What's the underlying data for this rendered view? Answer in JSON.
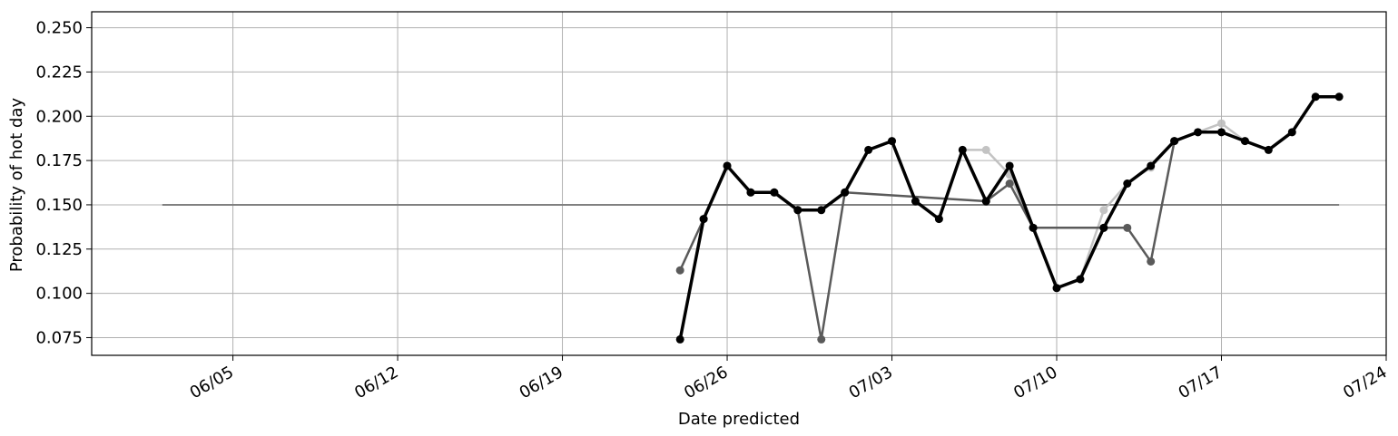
{
  "chart_data": {
    "type": "line",
    "xlabel": "Date predicted",
    "ylabel": "Probability of hot day",
    "x_tick_labels": [
      "06/05",
      "06/12",
      "06/19",
      "06/26",
      "07/03",
      "07/10",
      "07/17",
      "07/24"
    ],
    "y_tick_labels": [
      "0.075",
      "0.100",
      "0.125",
      "0.150",
      "0.175",
      "0.200",
      "0.225",
      "0.250"
    ],
    "y_ticks": [
      0.075,
      0.1,
      0.125,
      0.15,
      0.175,
      0.2,
      0.225,
      0.25
    ],
    "ylim": [
      0.065,
      0.259
    ],
    "xlim": [
      "2019-05-30",
      "2019-07-24"
    ],
    "grid": true,
    "legend": "none",
    "reference_line": {
      "x": [
        "2019-06-02",
        "2019-07-22"
      ],
      "value": 0.15,
      "color": "#808080"
    },
    "series": [
      {
        "color": "#bdbdbd",
        "opacity": 0.9,
        "width": 2.5,
        "points": [
          [
            "2019-07-06",
            0.181
          ],
          [
            "2019-07-07",
            0.181
          ],
          [
            "2019-07-08",
            0.167
          ],
          [
            "2019-07-09",
            0.137
          ],
          [
            "2019-07-10",
            0.103
          ],
          [
            "2019-07-11",
            0.108
          ],
          [
            "2019-07-12",
            0.147
          ],
          [
            "2019-07-13",
            0.162
          ],
          [
            "2019-07-14",
            0.171
          ],
          [
            "2019-07-15",
            0.186
          ],
          [
            "2019-07-16",
            0.191
          ],
          [
            "2019-07-17",
            0.196
          ],
          [
            "2019-07-18",
            0.186
          ]
        ]
      },
      {
        "color": "#5a5a5a",
        "opacity": 1,
        "width": 2.5,
        "points": [
          [
            "2019-06-24",
            0.113
          ],
          [
            "2019-06-25",
            0.142
          ],
          [
            "2019-06-26",
            0.172
          ],
          [
            "2019-06-27",
            0.157
          ],
          [
            "2019-06-28",
            0.157
          ],
          [
            "2019-06-29",
            0.147
          ],
          [
            "2019-06-30",
            0.074
          ],
          [
            "2019-07-01",
            0.157
          ],
          [
            "2019-07-07",
            0.152
          ],
          [
            "2019-07-08",
            0.162
          ],
          [
            "2019-07-09",
            0.137
          ],
          [
            "2019-07-12",
            0.137
          ],
          [
            "2019-07-13",
            0.137
          ],
          [
            "2019-07-14",
            0.118
          ],
          [
            "2019-07-15",
            0.186
          ]
        ]
      },
      {
        "color": "#000000",
        "opacity": 1,
        "width": 3.5,
        "points": [
          [
            "2019-06-24",
            0.074
          ],
          [
            "2019-06-25",
            0.142
          ],
          [
            "2019-06-26",
            0.172
          ],
          [
            "2019-06-27",
            0.157
          ],
          [
            "2019-06-28",
            0.157
          ],
          [
            "2019-06-29",
            0.147
          ],
          [
            "2019-06-30",
            0.147
          ],
          [
            "2019-07-01",
            0.157
          ],
          [
            "2019-07-02",
            0.181
          ],
          [
            "2019-07-03",
            0.186
          ],
          [
            "2019-07-04",
            0.152
          ],
          [
            "2019-07-05",
            0.142
          ],
          [
            "2019-07-06",
            0.181
          ],
          [
            "2019-07-07",
            0.152
          ],
          [
            "2019-07-08",
            0.172
          ],
          [
            "2019-07-09",
            0.137
          ],
          [
            "2019-07-10",
            0.103
          ],
          [
            "2019-07-11",
            0.108
          ],
          [
            "2019-07-12",
            0.137
          ],
          [
            "2019-07-13",
            0.162
          ],
          [
            "2019-07-14",
            0.172
          ],
          [
            "2019-07-15",
            0.186
          ],
          [
            "2019-07-16",
            0.191
          ],
          [
            "2019-07-17",
            0.191
          ],
          [
            "2019-07-18",
            0.186
          ],
          [
            "2019-07-19",
            0.181
          ],
          [
            "2019-07-20",
            0.191
          ],
          [
            "2019-07-21",
            0.211
          ],
          [
            "2019-07-22",
            0.211
          ]
        ]
      }
    ]
  }
}
